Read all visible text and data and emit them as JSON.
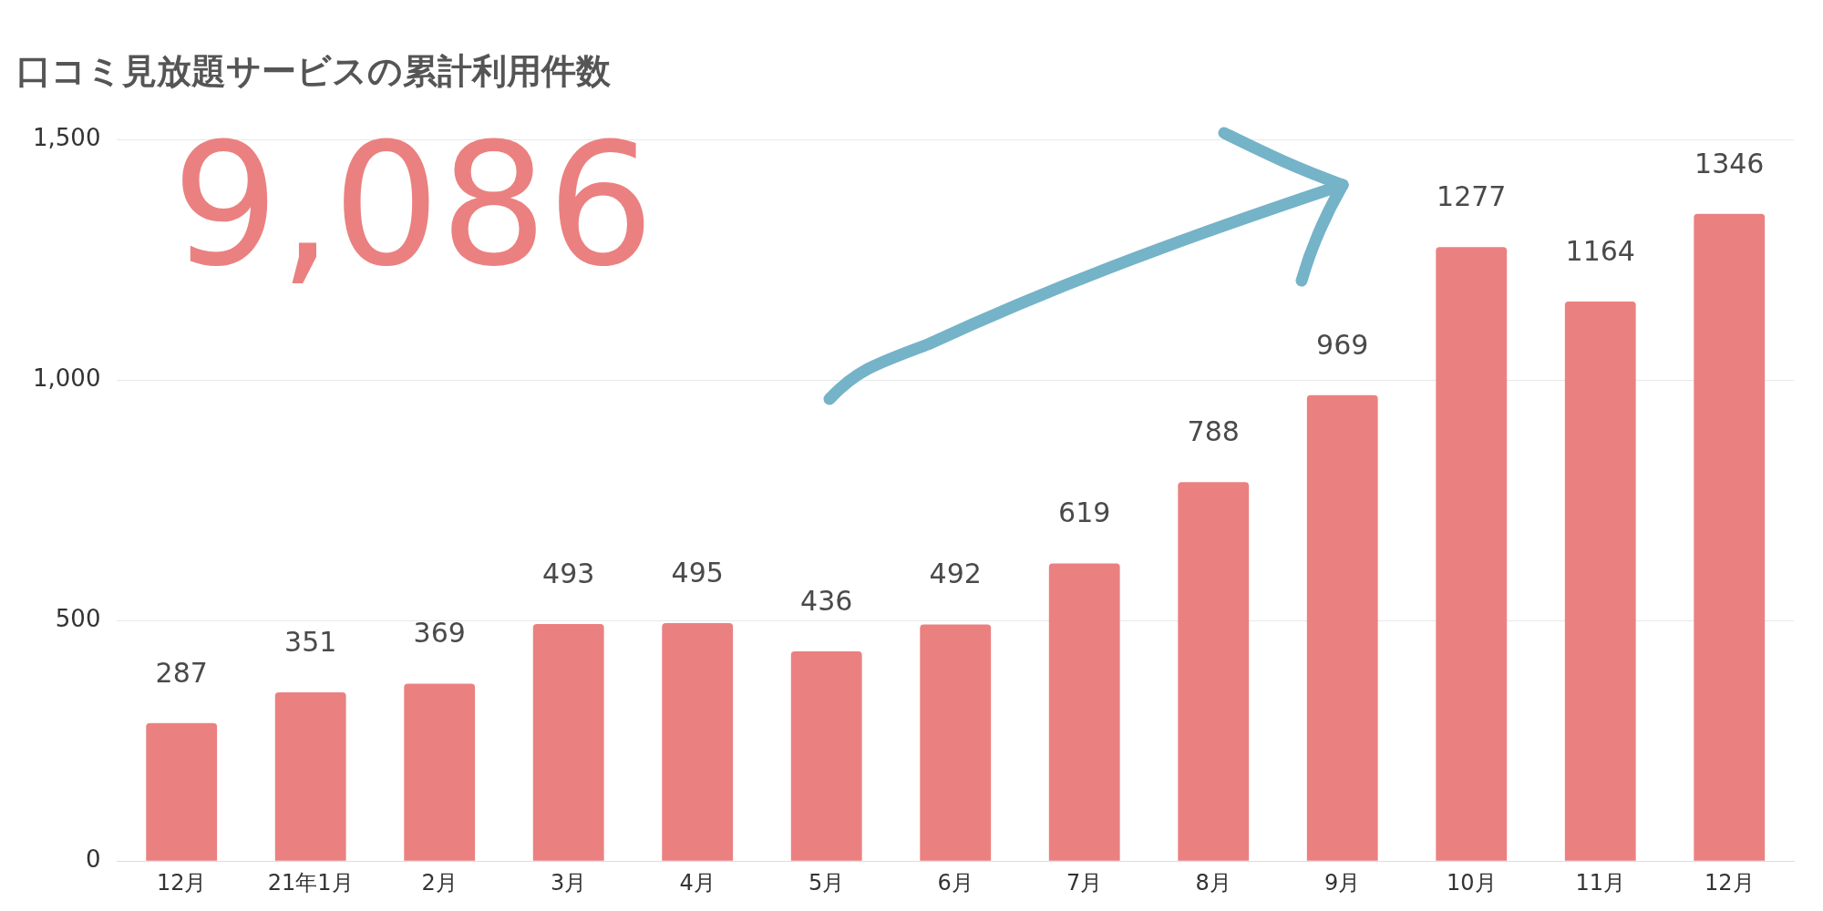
{
  "chart_data": {
    "type": "bar",
    "title": "口コミ見放題サービスの累計利用件数",
    "categories": [
      "12月",
      "21年1月",
      "2月",
      "3月",
      "4月",
      "5月",
      "6月",
      "7月",
      "8月",
      "9月",
      "10月",
      "11月",
      "12月"
    ],
    "values": [
      287,
      351,
      369,
      493,
      495,
      436,
      492,
      619,
      788,
      969,
      1277,
      1164,
      1346
    ],
    "color": "#eb8080",
    "ylim": [
      0,
      1500
    ],
    "yticks": [
      0,
      500,
      {
        "value": 1000,
        "label": "1,000"
      },
      {
        "value": 1500,
        "label": "1,500"
      }
    ],
    "grid": "y",
    "legend": false,
    "data_labels": true,
    "annotations": [
      "9,086"
    ]
  }
}
